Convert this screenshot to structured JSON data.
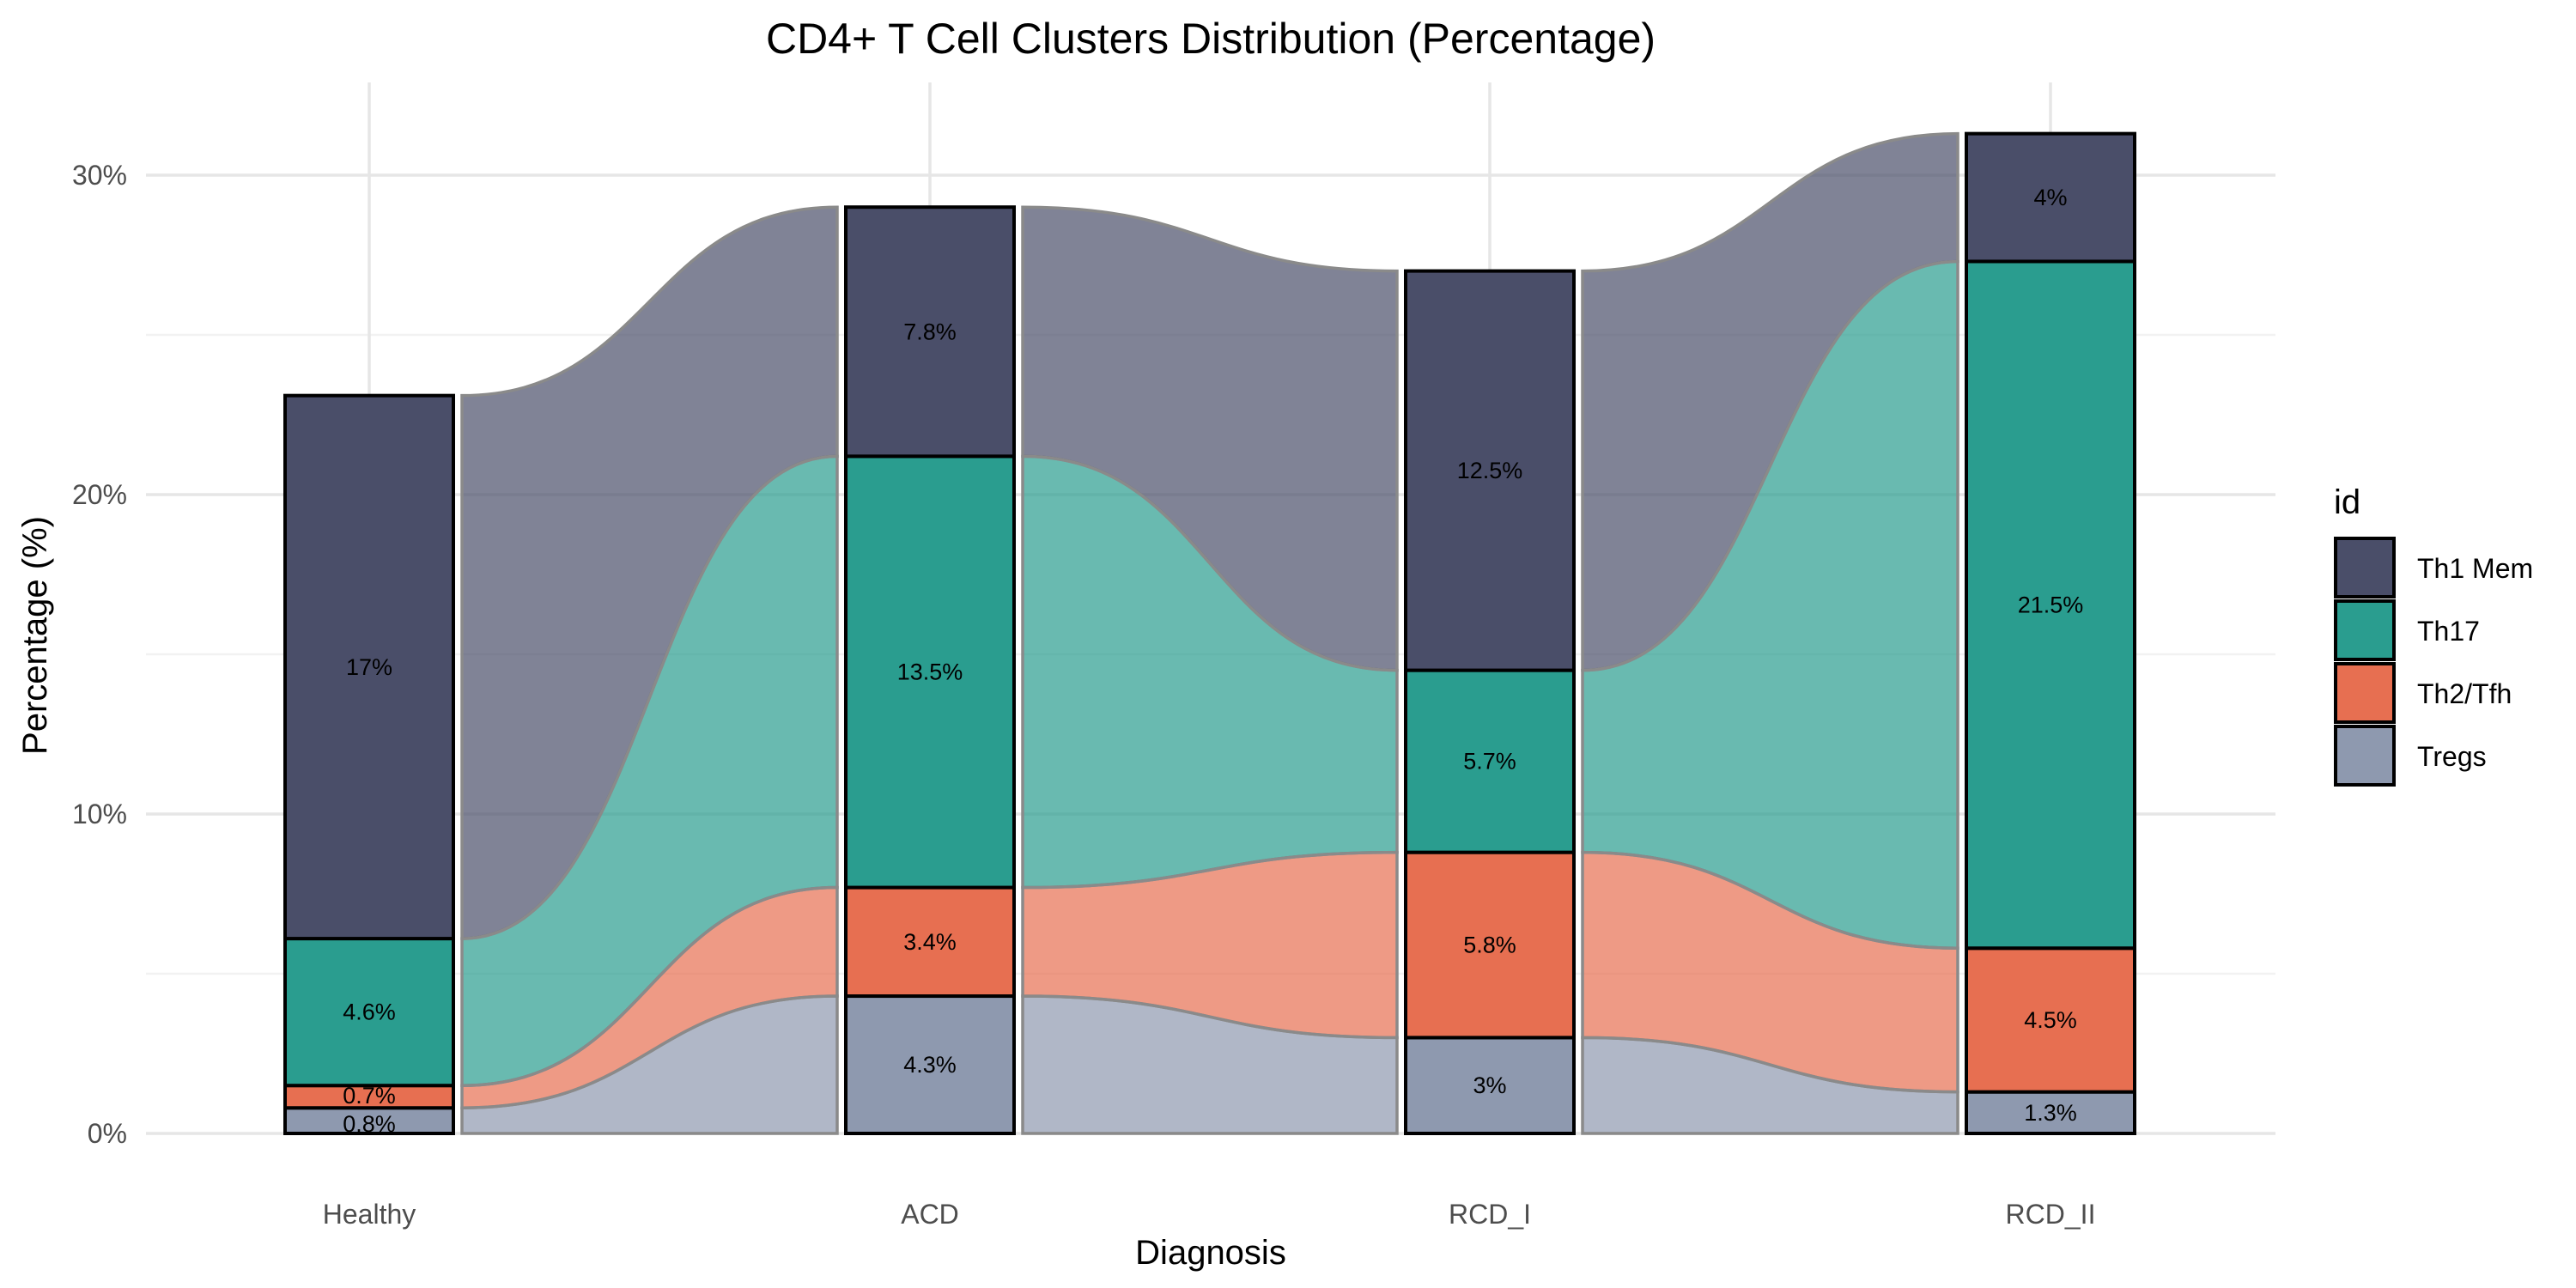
{
  "chart_data": {
    "type": "bar",
    "subtype": "stacked alluvial bar",
    "title": "CD4+ T Cell Clusters Distribution (Percentage)",
    "xlabel": "Diagnosis",
    "ylabel": "Percentage (%)",
    "categories": [
      "Healthy",
      "ACD",
      "RCD_I",
      "RCD_II"
    ],
    "series": [
      {
        "name": "Tregs",
        "values": [
          0.8,
          4.3,
          3.0,
          1.3
        ],
        "color": "#8E99AF",
        "labels": [
          "0.8%",
          "4.3%",
          "3%",
          "1.3%"
        ]
      },
      {
        "name": "Th2/Tfh",
        "values": [
          0.7,
          3.4,
          5.8,
          4.5
        ],
        "color": "#E76F51",
        "labels": [
          "0.7%",
          "3.4%",
          "5.8%",
          "4.5%"
        ]
      },
      {
        "name": "Th17",
        "values": [
          4.6,
          13.5,
          5.7,
          21.5
        ],
        "color": "#2A9D8F",
        "labels": [
          "4.6%",
          "13.5%",
          "5.7%",
          "21.5%"
        ]
      },
      {
        "name": "Th1 Mem",
        "values": [
          17,
          7.8,
          12.5,
          4
        ],
        "color": "#4A4E69",
        "labels": [
          "17%",
          "7.8%",
          "12.5%",
          "4%"
        ]
      }
    ],
    "ylim": [
      0,
      32
    ],
    "yticks": [
      0,
      10,
      20,
      30
    ],
    "ytick_labels": [
      "0%",
      "10%",
      "20%",
      "30%"
    ],
    "grid": true,
    "legend": {
      "title": "id",
      "position": "right",
      "entries": [
        "Th1 Mem",
        "Th17",
        "Th2/Tfh",
        "Tregs"
      ]
    }
  }
}
